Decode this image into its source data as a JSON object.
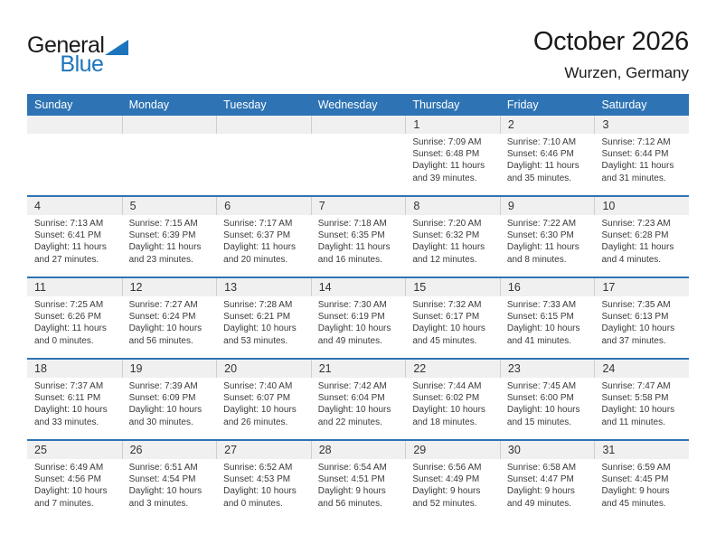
{
  "logo": {
    "part1": "General",
    "part2": "Blue"
  },
  "header": {
    "title": "October 2026",
    "location": "Wurzen, Germany"
  },
  "colors": {
    "accent_blue": "#2e74b5",
    "logo_blue": "#1c75bc",
    "strip_gray": "#f0f0f0",
    "text_dark": "#3a3a3a"
  },
  "calendar": {
    "weekdays": [
      "Sunday",
      "Monday",
      "Tuesday",
      "Wednesday",
      "Thursday",
      "Friday",
      "Saturday"
    ],
    "weeks": [
      [
        null,
        null,
        null,
        null,
        {
          "day": "1",
          "lines": [
            "Sunrise: 7:09 AM",
            "Sunset: 6:48 PM",
            "Daylight: 11 hours",
            "and 39 minutes."
          ]
        },
        {
          "day": "2",
          "lines": [
            "Sunrise: 7:10 AM",
            "Sunset: 6:46 PM",
            "Daylight: 11 hours",
            "and 35 minutes."
          ]
        },
        {
          "day": "3",
          "lines": [
            "Sunrise: 7:12 AM",
            "Sunset: 6:44 PM",
            "Daylight: 11 hours",
            "and 31 minutes."
          ]
        }
      ],
      [
        {
          "day": "4",
          "lines": [
            "Sunrise: 7:13 AM",
            "Sunset: 6:41 PM",
            "Daylight: 11 hours",
            "and 27 minutes."
          ]
        },
        {
          "day": "5",
          "lines": [
            "Sunrise: 7:15 AM",
            "Sunset: 6:39 PM",
            "Daylight: 11 hours",
            "and 23 minutes."
          ]
        },
        {
          "day": "6",
          "lines": [
            "Sunrise: 7:17 AM",
            "Sunset: 6:37 PM",
            "Daylight: 11 hours",
            "and 20 minutes."
          ]
        },
        {
          "day": "7",
          "lines": [
            "Sunrise: 7:18 AM",
            "Sunset: 6:35 PM",
            "Daylight: 11 hours",
            "and 16 minutes."
          ]
        },
        {
          "day": "8",
          "lines": [
            "Sunrise: 7:20 AM",
            "Sunset: 6:32 PM",
            "Daylight: 11 hours",
            "and 12 minutes."
          ]
        },
        {
          "day": "9",
          "lines": [
            "Sunrise: 7:22 AM",
            "Sunset: 6:30 PM",
            "Daylight: 11 hours",
            "and 8 minutes."
          ]
        },
        {
          "day": "10",
          "lines": [
            "Sunrise: 7:23 AM",
            "Sunset: 6:28 PM",
            "Daylight: 11 hours",
            "and 4 minutes."
          ]
        }
      ],
      [
        {
          "day": "11",
          "lines": [
            "Sunrise: 7:25 AM",
            "Sunset: 6:26 PM",
            "Daylight: 11 hours",
            "and 0 minutes."
          ]
        },
        {
          "day": "12",
          "lines": [
            "Sunrise: 7:27 AM",
            "Sunset: 6:24 PM",
            "Daylight: 10 hours",
            "and 56 minutes."
          ]
        },
        {
          "day": "13",
          "lines": [
            "Sunrise: 7:28 AM",
            "Sunset: 6:21 PM",
            "Daylight: 10 hours",
            "and 53 minutes."
          ]
        },
        {
          "day": "14",
          "lines": [
            "Sunrise: 7:30 AM",
            "Sunset: 6:19 PM",
            "Daylight: 10 hours",
            "and 49 minutes."
          ]
        },
        {
          "day": "15",
          "lines": [
            "Sunrise: 7:32 AM",
            "Sunset: 6:17 PM",
            "Daylight: 10 hours",
            "and 45 minutes."
          ]
        },
        {
          "day": "16",
          "lines": [
            "Sunrise: 7:33 AM",
            "Sunset: 6:15 PM",
            "Daylight: 10 hours",
            "and 41 minutes."
          ]
        },
        {
          "day": "17",
          "lines": [
            "Sunrise: 7:35 AM",
            "Sunset: 6:13 PM",
            "Daylight: 10 hours",
            "and 37 minutes."
          ]
        }
      ],
      [
        {
          "day": "18",
          "lines": [
            "Sunrise: 7:37 AM",
            "Sunset: 6:11 PM",
            "Daylight: 10 hours",
            "and 33 minutes."
          ]
        },
        {
          "day": "19",
          "lines": [
            "Sunrise: 7:39 AM",
            "Sunset: 6:09 PM",
            "Daylight: 10 hours",
            "and 30 minutes."
          ]
        },
        {
          "day": "20",
          "lines": [
            "Sunrise: 7:40 AM",
            "Sunset: 6:07 PM",
            "Daylight: 10 hours",
            "and 26 minutes."
          ]
        },
        {
          "day": "21",
          "lines": [
            "Sunrise: 7:42 AM",
            "Sunset: 6:04 PM",
            "Daylight: 10 hours",
            "and 22 minutes."
          ]
        },
        {
          "day": "22",
          "lines": [
            "Sunrise: 7:44 AM",
            "Sunset: 6:02 PM",
            "Daylight: 10 hours",
            "and 18 minutes."
          ]
        },
        {
          "day": "23",
          "lines": [
            "Sunrise: 7:45 AM",
            "Sunset: 6:00 PM",
            "Daylight: 10 hours",
            "and 15 minutes."
          ]
        },
        {
          "day": "24",
          "lines": [
            "Sunrise: 7:47 AM",
            "Sunset: 5:58 PM",
            "Daylight: 10 hours",
            "and 11 minutes."
          ]
        }
      ],
      [
        {
          "day": "25",
          "lines": [
            "Sunrise: 6:49 AM",
            "Sunset: 4:56 PM",
            "Daylight: 10 hours",
            "and 7 minutes."
          ]
        },
        {
          "day": "26",
          "lines": [
            "Sunrise: 6:51 AM",
            "Sunset: 4:54 PM",
            "Daylight: 10 hours",
            "and 3 minutes."
          ]
        },
        {
          "day": "27",
          "lines": [
            "Sunrise: 6:52 AM",
            "Sunset: 4:53 PM",
            "Daylight: 10 hours",
            "and 0 minutes."
          ]
        },
        {
          "day": "28",
          "lines": [
            "Sunrise: 6:54 AM",
            "Sunset: 4:51 PM",
            "Daylight: 9 hours",
            "and 56 minutes."
          ]
        },
        {
          "day": "29",
          "lines": [
            "Sunrise: 6:56 AM",
            "Sunset: 4:49 PM",
            "Daylight: 9 hours",
            "and 52 minutes."
          ]
        },
        {
          "day": "30",
          "lines": [
            "Sunrise: 6:58 AM",
            "Sunset: 4:47 PM",
            "Daylight: 9 hours",
            "and 49 minutes."
          ]
        },
        {
          "day": "31",
          "lines": [
            "Sunrise: 6:59 AM",
            "Sunset: 4:45 PM",
            "Daylight: 9 hours",
            "and 45 minutes."
          ]
        }
      ]
    ]
  }
}
